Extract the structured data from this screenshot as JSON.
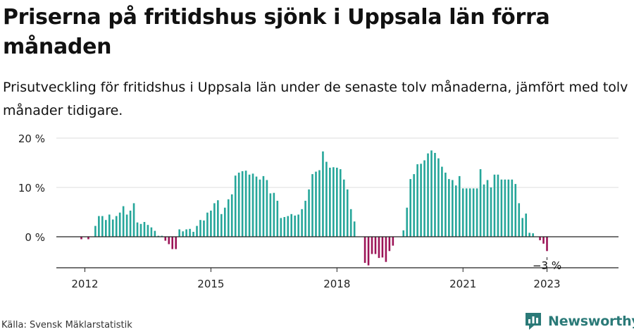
{
  "title": "Priserna på fritidshus sjönk i Uppsala län förra månaden",
  "subtitle": "Prisutveckling för fritidshus i Uppsala län under de senaste tolv månaderna, jämfört med tolv månader tidigare.",
  "source": "Källa: Svensk Mäklarstatistik",
  "brand": {
    "name": "Newsworthy",
    "icon": "newsworthy-logo-icon",
    "color": "#2b7a78"
  },
  "colors": {
    "positive": "#26a69a",
    "negative": "#9c1457",
    "axis": "#222222",
    "grid": "#dddddd"
  },
  "chart_data": {
    "type": "bar",
    "x_start": "2011-12",
    "x_end": "2023-01",
    "xticks": [
      "2012",
      "2015",
      "2018",
      "2021",
      "2023"
    ],
    "yticks": [
      "20 %",
      "10 %",
      "0 %"
    ],
    "ylim": [
      -6.5,
      20
    ],
    "grid": true,
    "series": [
      {
        "values": [
          -0.5,
          0,
          -0.5,
          0,
          2.2,
          4.2,
          4.2,
          3.4,
          4.5,
          3.5,
          4.2,
          4.9,
          6.2,
          4.5,
          5.3,
          6.8,
          2.9,
          2.6,
          3.0,
          2.4,
          1.9,
          1.2,
          0.2,
          0.2,
          -0.8,
          -1.5,
          -2.5,
          -2.5,
          1.5,
          1.1,
          1.5,
          1.6,
          1.0,
          2.2,
          3.4,
          3.3,
          4.9,
          5.3,
          6.8,
          7.4,
          4.6,
          5.9,
          7.6,
          8.6,
          12.4,
          13.0,
          13.3,
          13.4,
          12.6,
          12.8,
          12.2,
          11.6,
          12.3,
          11.5,
          8.8,
          8.9,
          7.3,
          3.8,
          4.0,
          4.2,
          4.6,
          4.3,
          4.5,
          5.6,
          7.3,
          9.6,
          12.7,
          13.2,
          13.5,
          17.3,
          15.2,
          14.0,
          14.1,
          14.0,
          13.7,
          11.6,
          9.6,
          5.6,
          3.1,
          0,
          0,
          -5.3,
          -5.8,
          -3.5,
          -3.5,
          -4.3,
          -4.2,
          -5.1,
          -2.9,
          -1.8,
          0,
          0,
          1.3,
          5.9,
          11.7,
          12.7,
          14.7,
          14.8,
          15.5,
          16.9,
          17.5,
          17.0,
          15.9,
          14.2,
          13.0,
          11.7,
          11.5,
          10.4,
          12.3,
          9.8,
          9.8,
          9.8,
          9.8,
          9.8,
          13.7,
          10.6,
          11.5,
          10.0,
          12.6,
          12.6,
          11.6,
          11.6,
          11.6,
          11.6,
          10.7,
          6.8,
          3.8,
          4.7,
          0.8,
          0.7,
          0,
          -0.7,
          -1.4,
          -2.9
        ]
      }
    ],
    "last_value_label": "−3 %"
  }
}
